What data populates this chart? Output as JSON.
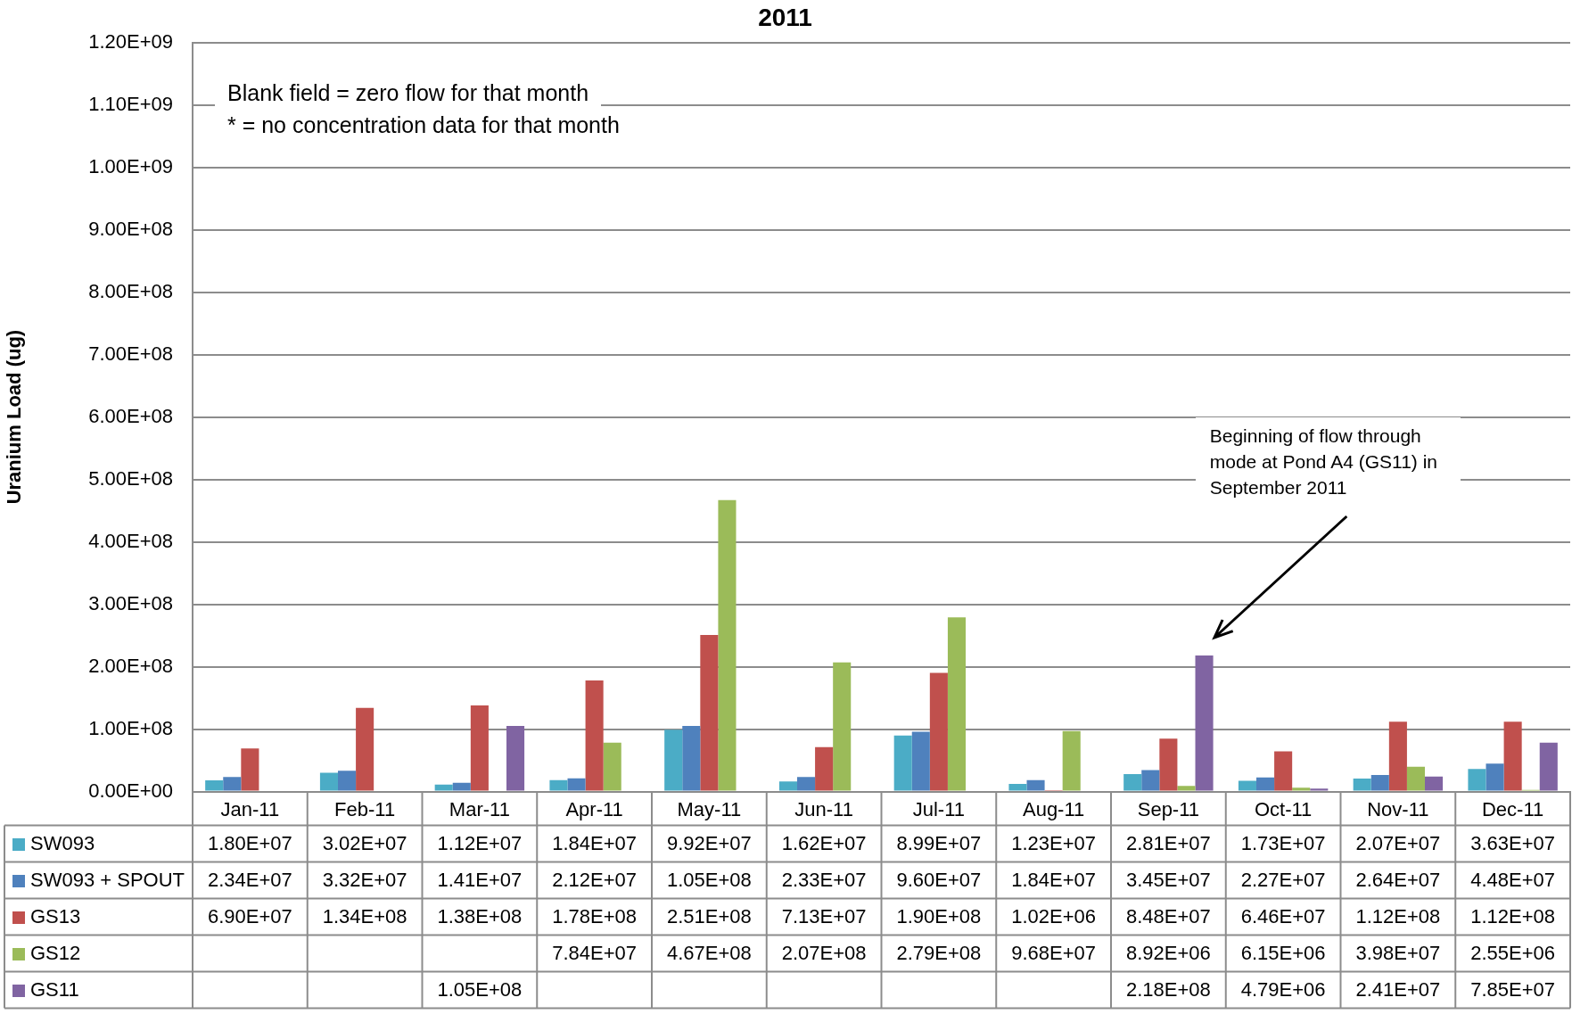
{
  "chart_data": {
    "type": "bar",
    "title": "2011",
    "ylabel": "Uranium Load (ug)",
    "categories": [
      "Jan-11",
      "Feb-11",
      "Mar-11",
      "Apr-11",
      "May-11",
      "Jun-11",
      "Jul-11",
      "Aug-11",
      "Sep-11",
      "Oct-11",
      "Nov-11",
      "Dec-11"
    ],
    "series": [
      {
        "name": "SW093",
        "color": "#4bacc6",
        "values": [
          18000000.0,
          30200000.0,
          11200000.0,
          18400000.0,
          99200000.0,
          16200000.0,
          89900000.0,
          12300000.0,
          28100000.0,
          17300000.0,
          20700000.0,
          36300000.0
        ],
        "value_labels": [
          "1.80E+07",
          "3.02E+07",
          "1.12E+07",
          "1.84E+07",
          "9.92E+07",
          "1.62E+07",
          "8.99E+07",
          "1.23E+07",
          "2.81E+07",
          "1.73E+07",
          "2.07E+07",
          "3.63E+07"
        ]
      },
      {
        "name": "SW093 + SPOUT",
        "color": "#4f81bd",
        "values": [
          23400000.0,
          33200000.0,
          14100000.0,
          21200000.0,
          105000000.0,
          23300000.0,
          96000000.0,
          18400000.0,
          34500000.0,
          22700000.0,
          26400000.0,
          44800000.0
        ],
        "value_labels": [
          "2.34E+07",
          "3.32E+07",
          "1.41E+07",
          "2.12E+07",
          "1.05E+08",
          "2.33E+07",
          "9.60E+07",
          "1.84E+07",
          "3.45E+07",
          "2.27E+07",
          "2.64E+07",
          "4.48E+07"
        ]
      },
      {
        "name": "GS13",
        "color": "#c0504d",
        "values": [
          69000000.0,
          134000000.0,
          138000000.0,
          178000000.0,
          251000000.0,
          71300000.0,
          190000000.0,
          1020000.0,
          84800000.0,
          64600000.0,
          112000000.0,
          112000000.0
        ],
        "value_labels": [
          "6.90E+07",
          "1.34E+08",
          "1.38E+08",
          "1.78E+08",
          "2.51E+08",
          "7.13E+07",
          "1.90E+08",
          "1.02E+06",
          "8.48E+07",
          "6.46E+07",
          "1.12E+08",
          "1.12E+08"
        ]
      },
      {
        "name": "GS12",
        "color": "#9bbb59",
        "values": [
          null,
          null,
          null,
          78400000.0,
          467000000.0,
          207000000.0,
          279000000.0,
          96800000.0,
          8920000.0,
          6150000.0,
          39800000.0,
          2550000.0
        ],
        "value_labels": [
          null,
          null,
          null,
          "7.84E+07",
          "4.67E+08",
          "2.07E+08",
          "2.79E+08",
          "9.68E+07",
          "8.92E+06",
          "6.15E+06",
          "3.98E+07",
          "2.55E+06"
        ]
      },
      {
        "name": "GS11",
        "color": "#8064a2",
        "values": [
          null,
          null,
          105000000.0,
          null,
          null,
          null,
          null,
          null,
          218000000.0,
          4790000.0,
          24100000.0,
          78500000.0
        ],
        "value_labels": [
          null,
          null,
          "1.05E+08",
          null,
          null,
          null,
          null,
          null,
          "2.18E+08",
          "4.79E+06",
          "2.41E+07",
          "7.85E+07"
        ]
      }
    ],
    "ylim": [
      0,
      1200000000.0
    ],
    "yticks": [
      {
        "value": 0,
        "label": "0.00E+00"
      },
      {
        "value": 100000000.0,
        "label": "1.00E+08"
      },
      {
        "value": 200000000.0,
        "label": "2.00E+08"
      },
      {
        "value": 300000000.0,
        "label": "3.00E+08"
      },
      {
        "value": 400000000.0,
        "label": "4.00E+08"
      },
      {
        "value": 500000000.0,
        "label": "5.00E+08"
      },
      {
        "value": 600000000.0,
        "label": "6.00E+08"
      },
      {
        "value": 700000000.0,
        "label": "7.00E+08"
      },
      {
        "value": 800000000.0,
        "label": "8.00E+08"
      },
      {
        "value": 900000000.0,
        "label": "9.00E+08"
      },
      {
        "value": 1000000000.0,
        "label": "1.00E+09"
      },
      {
        "value": 1100000000.0,
        "label": "1.10E+09"
      },
      {
        "value": 1200000000.0,
        "label": "1.20E+09"
      }
    ],
    "grid": "y",
    "legend": "bottom",
    "annotations": [
      "Blank field = zero flow for that month",
      "* = no concentration data for that month",
      "Beginning of flow through mode at Pond A4 (GS11) in September 2011"
    ]
  }
}
